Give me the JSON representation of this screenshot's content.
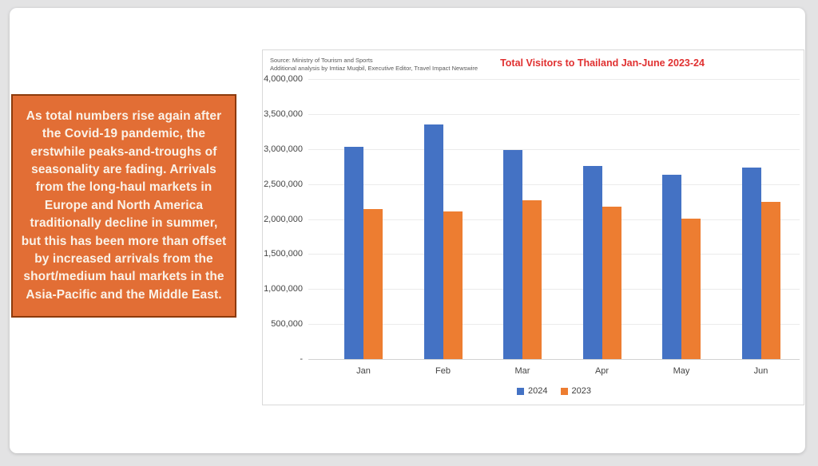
{
  "slide": {
    "textbox": {
      "text": "As total numbers rise again after the Covid-19 pandemic, the erstwhile peaks-and-troughs of seasonality are fading. Arrivals from the long-haul markets in Europe and North America traditionally decline in summer, but this has been more than offset by increased arrivals from the short/medium haul markets in the Asia-Pacific and the Middle East.",
      "fill_color": "#e26e35",
      "border_color": "#8c3a0b",
      "text_color": "#faf2e8"
    }
  },
  "chart": {
    "source_line1": "Source: Ministry of Tourism and Sports",
    "source_line2": "Additional analysis by Imtiaz Muqbil, Executive Editor, Travel Impact Newswire",
    "title": "Total Visitors to Thailand Jan-June 2023-24",
    "title_color": "#e03030"
  },
  "chart_data": {
    "type": "bar",
    "title": "Total Visitors to Thailand Jan-June 2023-24",
    "categories": [
      "Jan",
      "Feb",
      "Mar",
      "Apr",
      "May",
      "Jun"
    ],
    "series": [
      {
        "name": "2024",
        "color": "#4472c4",
        "values": [
          3030000,
          3350000,
          2985000,
          2760000,
          2630000,
          2740000
        ]
      },
      {
        "name": "2023",
        "color": "#ed7d31",
        "values": [
          2140000,
          2110000,
          2265000,
          2180000,
          2010000,
          2240000
        ]
      }
    ],
    "xlabel": "",
    "ylabel": "",
    "ylim": [
      0,
      4000000
    ],
    "y_tick_step": 500000,
    "y_tick_labels_top_to_bottom": [
      "4,000,000",
      "3,500,000",
      "3,000,000",
      "2,500,000",
      "2,000,000",
      "1,500,000",
      "1,000,000",
      "500,000",
      "-"
    ],
    "grid": true,
    "legend_position": "bottom"
  }
}
